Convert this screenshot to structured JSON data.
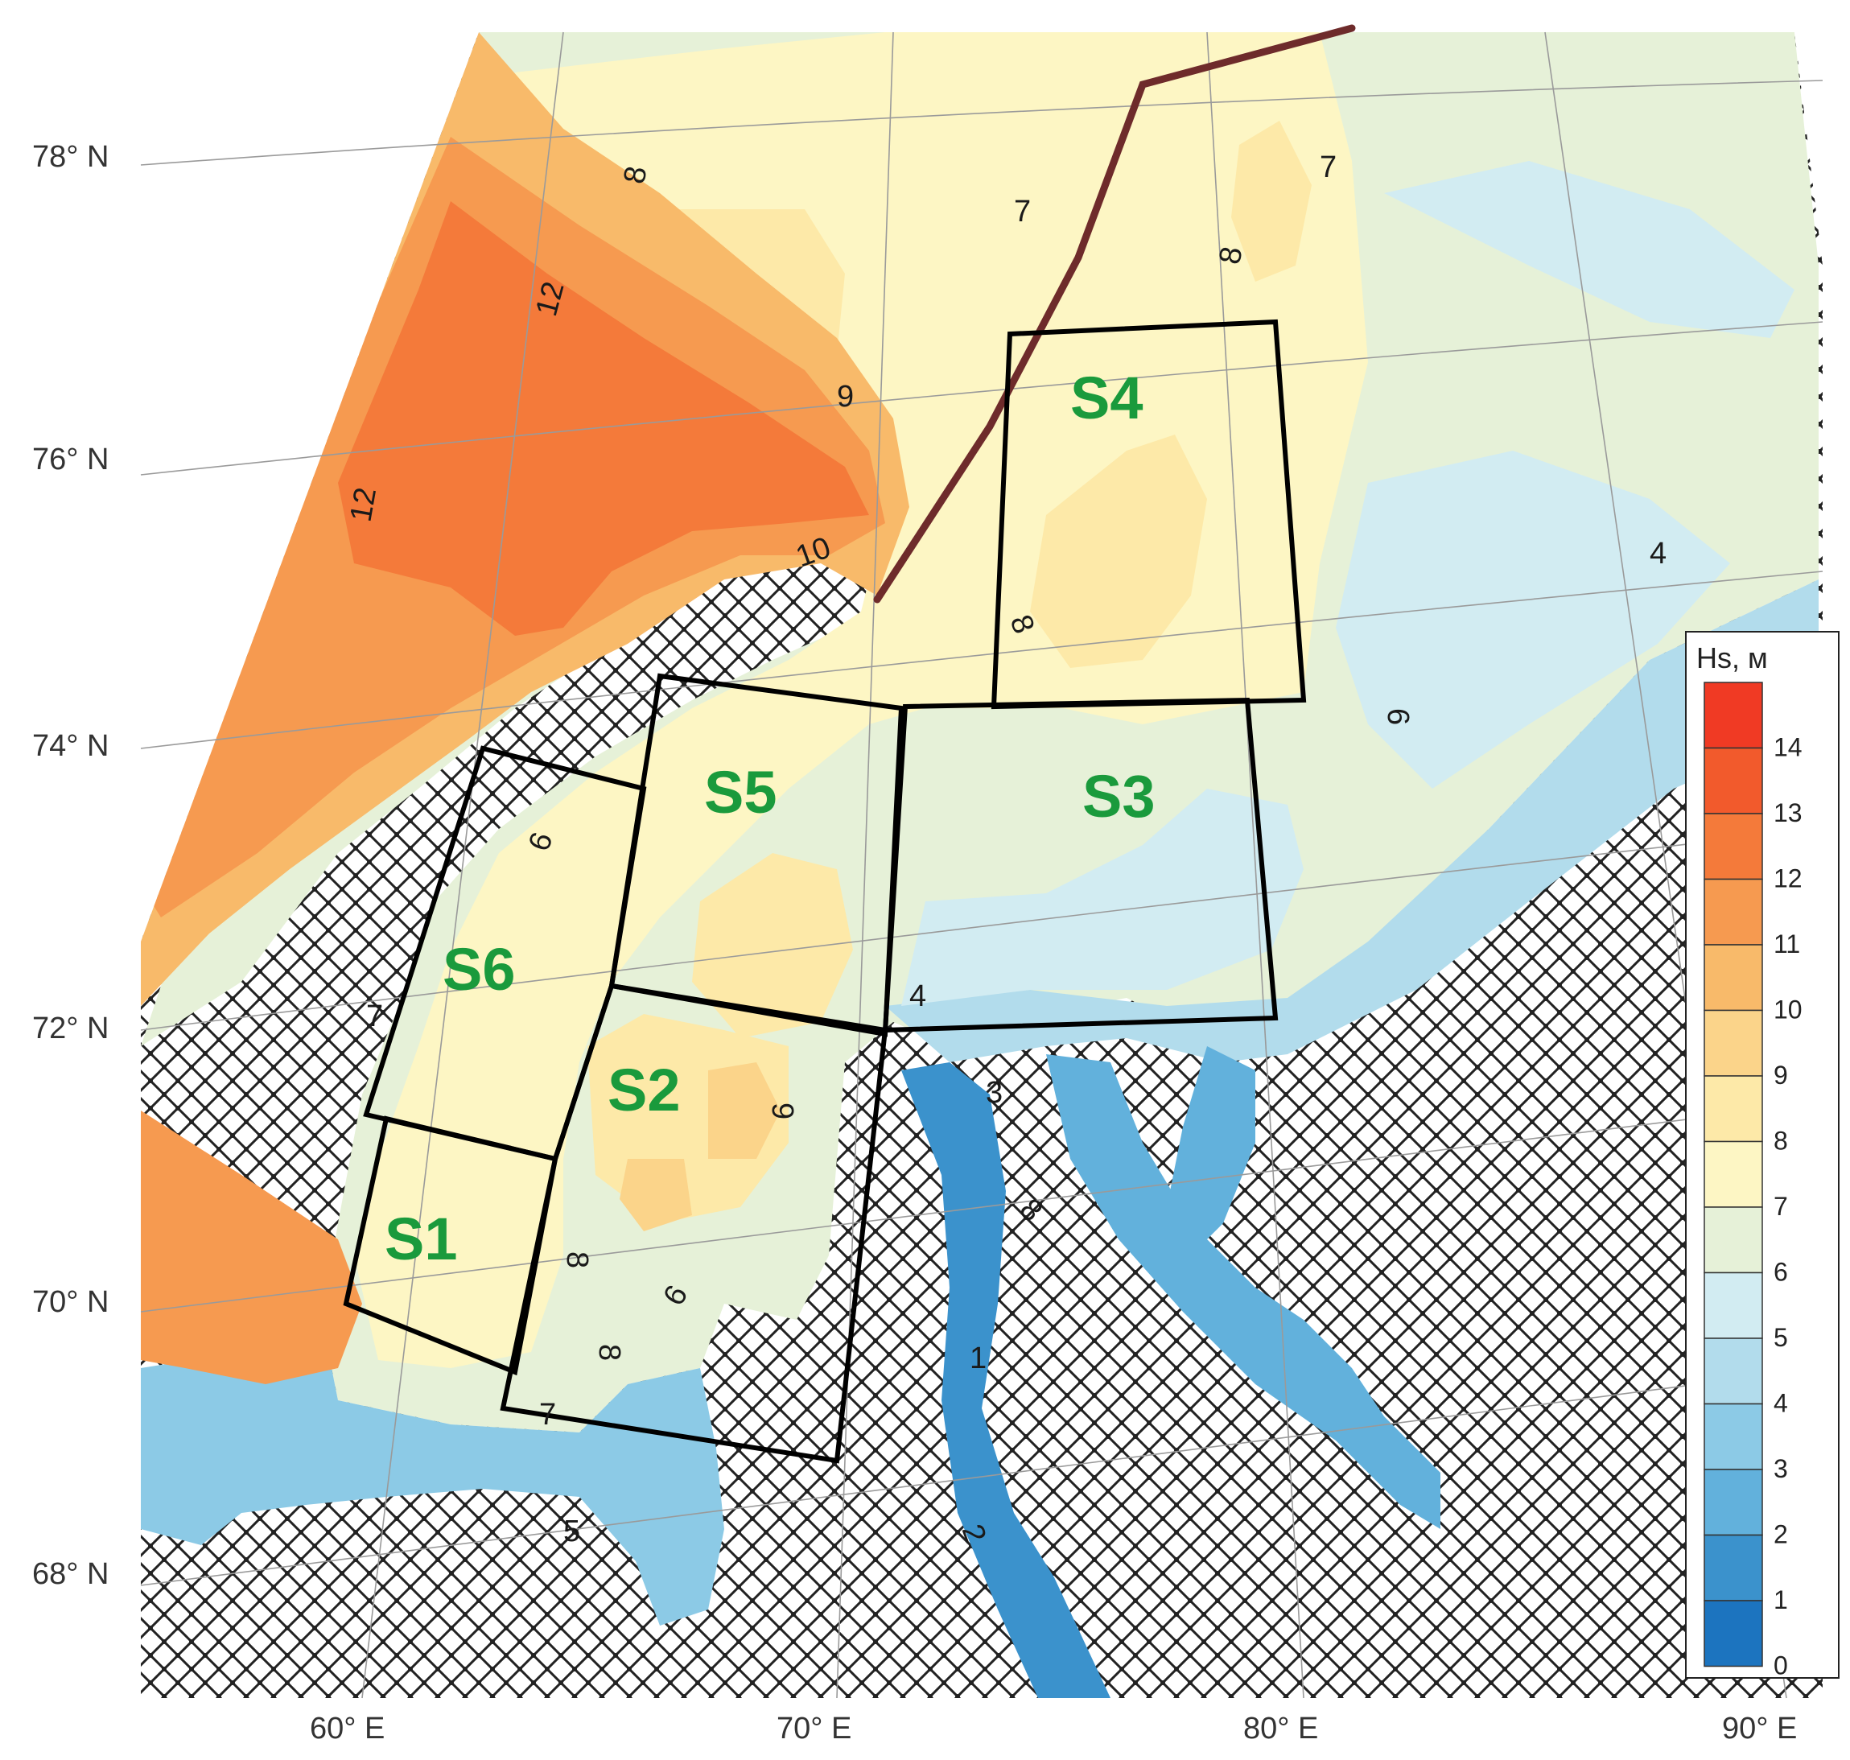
{
  "axes": {
    "lat_labels": [
      "78° N",
      "76° N",
      "74° N",
      "72° N",
      "70° N",
      "68° N"
    ],
    "lon_labels": [
      "60° E",
      "70° E",
      "80° E",
      "90° E"
    ]
  },
  "regions": [
    "S1",
    "S2",
    "S3",
    "S4",
    "S5",
    "S6"
  ],
  "contour_labels": [
    "12",
    "12",
    "10",
    "9",
    "8",
    "8",
    "8",
    "8",
    "8",
    "9",
    "7",
    "7",
    "7",
    "7",
    "6",
    "6",
    "6",
    "5",
    "4",
    "3",
    "2",
    "1",
    "4",
    "8"
  ],
  "legend": {
    "title": "Hs, м",
    "levels": [
      "14",
      "13",
      "12",
      "11",
      "10",
      "9",
      "8",
      "7",
      "6",
      "5",
      "4",
      "3",
      "2",
      "1",
      "0"
    ],
    "colors": [
      "#f03a24",
      "#f25a2c",
      "#f47a3a",
      "#f69a50",
      "#f8ba6a",
      "#fbd48a",
      "#fde9a8",
      "#fdf6c4",
      "#e6f1d8",
      "#d2ecf2",
      "#b2dcec",
      "#8ccae6",
      "#62b1dc",
      "#3b92cc",
      "#1c74bf"
    ]
  },
  "colors": {
    "land_hatch": "#222222",
    "region_label": "#1a9a3c",
    "track_line": "#6e2b2b"
  }
}
